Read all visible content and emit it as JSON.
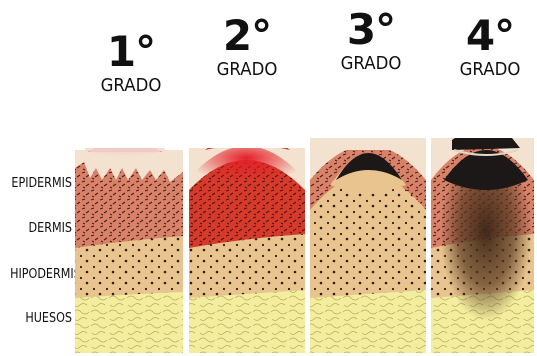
{
  "grades": [
    {
      "number": "1°",
      "label": "GRADO"
    },
    {
      "number": "2°",
      "label": "GRADO"
    },
    {
      "number": "3°",
      "label": "GRADO"
    },
    {
      "number": "4°",
      "label": "GRADO"
    }
  ],
  "layers": [
    {
      "label": "EPIDERMIS"
    },
    {
      "label": "DERMIS"
    },
    {
      "label": "HIPODERMIS"
    },
    {
      "label": "HUESOS"
    }
  ],
  "colors": {
    "epidermis": "#f3e2cf",
    "dermis": "#d9826a",
    "hypodermis": "#e9c48e",
    "bone": "#f3eda0",
    "burn_red": "#d9252a",
    "char": "#1c1818"
  }
}
